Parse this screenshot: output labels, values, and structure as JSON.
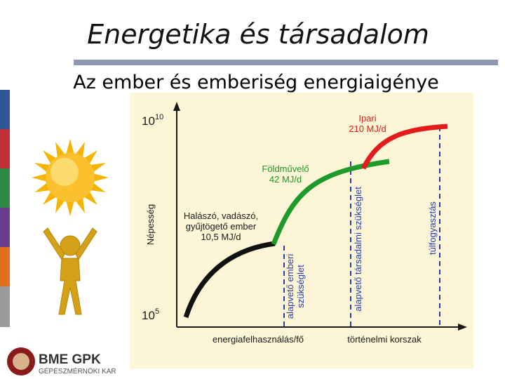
{
  "header": {
    "title": "Energetika és társadalom",
    "subtitle": "Az ember és emberiség energiaigénye"
  },
  "diagram": {
    "y_axis_label": "Népesség",
    "y_top": {
      "base": "10",
      "exp": "10"
    },
    "y_bottom": {
      "base": "10",
      "exp": "5"
    },
    "x_labels": [
      "energiafelhasználás/fő",
      "történelmi korszak"
    ],
    "stages": [
      {
        "lines": [
          "Halászó, vadászó,",
          "gyűjtögető ember"
        ],
        "energy": "10,5 MJ/d"
      },
      {
        "lines": [
          "Földművelő"
        ],
        "energy": "42 MJ/d"
      },
      {
        "lines": [
          "Ipari"
        ],
        "energy": "210 MJ/d"
      }
    ],
    "thresholds": [
      {
        "lines": [
          "alapvető emberi",
          "szükséglet"
        ]
      },
      {
        "lines": [
          "alapvető társadalmi  szükséglet"
        ]
      },
      {
        "lines": [
          "túlfogyasztás"
        ]
      }
    ]
  },
  "logo": {
    "name": "BME GPK",
    "faculty": "GÉPÉSZMÉRNÖKI KAR"
  }
}
